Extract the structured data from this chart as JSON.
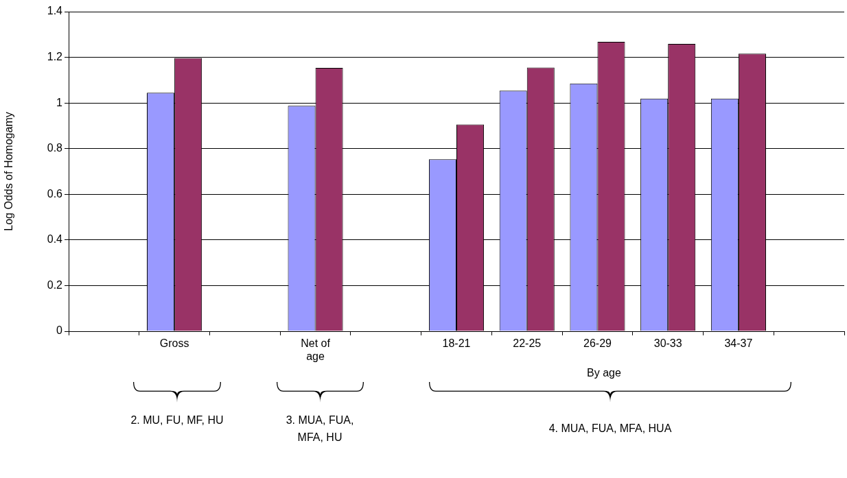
{
  "chart_data": {
    "type": "bar",
    "ylabel": "Log Odds of Homogamy",
    "categories": [
      null,
      "Gross",
      null,
      "Net of age",
      null,
      "18-21",
      "22-25",
      "26-29",
      "30-33",
      "34-37",
      null
    ],
    "series": [
      {
        "color": "#9999ff",
        "values": [
          null,
          1.045,
          null,
          0.988,
          null,
          0.753,
          1.054,
          1.085,
          1.019,
          1.019,
          null
        ]
      },
      {
        "color": "#993366",
        "values": [
          null,
          1.197,
          null,
          1.154,
          null,
          0.906,
          1.155,
          1.268,
          1.259,
          1.216,
          null
        ]
      }
    ],
    "ylim": [
      0,
      1.4
    ],
    "yticks": [
      0,
      0.2,
      0.4,
      0.6,
      0.8,
      1,
      1.2,
      1.4
    ],
    "grid": "y",
    "legend": false,
    "annotations": [
      "By age",
      "2. MU, FU, MF, HU",
      "3. MUA, FUA, MFA, HU",
      "4. MUA, FUA, MFA, HUA"
    ]
  }
}
